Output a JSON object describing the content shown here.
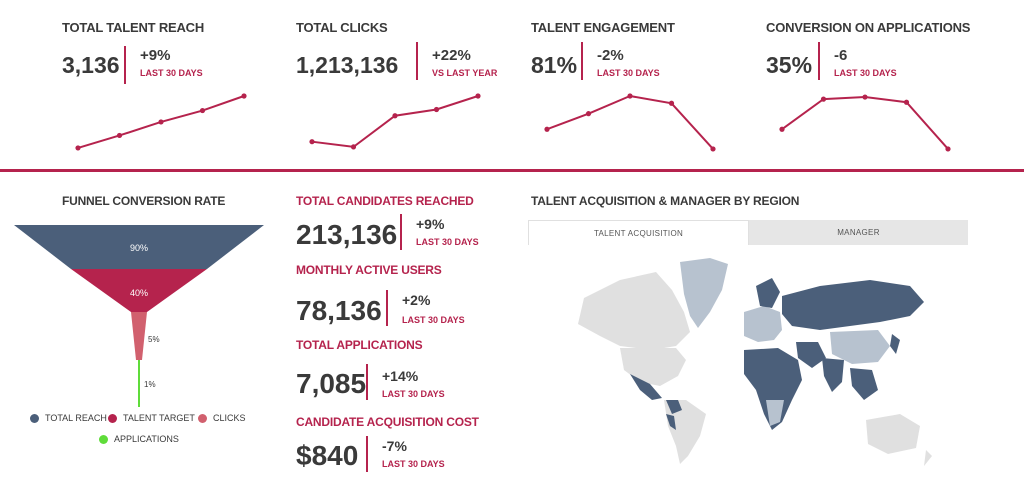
{
  "colors": {
    "accent": "#b5234d",
    "navy": "#4b5f7a",
    "pink": "#d1606e",
    "green": "#5fdc3a",
    "land": "#e0e0e0",
    "mid": "#b7c2cf"
  },
  "kpis": [
    {
      "title": "TOTAL TALENT REACH",
      "value": "3,136",
      "change": "+9%",
      "period": "LAST 30 DAYS",
      "trend": [
        2,
        14,
        27,
        38,
        52
      ]
    },
    {
      "title": "TOTAL CLICKS",
      "value": "1,213,136",
      "change": "+22%",
      "period": "VS LAST YEAR",
      "trend": [
        8,
        3,
        33,
        39,
        52
      ]
    },
    {
      "title": "TALENT ENGAGEMENT",
      "value": "81%",
      "change": "-2%",
      "period": "LAST 30 DAYS",
      "trend": [
        20,
        35,
        52,
        45,
        1
      ]
    },
    {
      "title": "CONVERSION ON APPLICATIONS",
      "value": "35%",
      "change": "-6",
      "period": "LAST 30 DAYS",
      "trend": [
        20,
        49,
        51,
        46,
        1
      ]
    }
  ],
  "funnel": {
    "title": "FUNNEL CONVERSION RATE",
    "stages": [
      {
        "name": "TOTAL REACH",
        "percent": "90%",
        "color": "#4b5f7a"
      },
      {
        "name": "TALENT TARGET",
        "percent": "40%",
        "color": "#b5234d"
      },
      {
        "name": "CLICKS",
        "percent": "5%",
        "color": "#d1606e"
      },
      {
        "name": "APPLICATIONS",
        "percent": "1%",
        "color": "#5fdc3a"
      }
    ]
  },
  "stats": [
    {
      "title": "TOTAL CANDIDATES REACHED",
      "value": "213,136",
      "change": "+9%",
      "period": "LAST 30 DAYS"
    },
    {
      "title": "MONTHLY ACTIVE USERS",
      "value": "78,136",
      "change": "+2%",
      "period": "LAST 30 DAYS"
    },
    {
      "title": "TOTAL APPLICATIONS",
      "value": "7,085",
      "change": "+14%",
      "period": "LAST 30 DAYS"
    },
    {
      "title": "CANDIDATE ACQUISITION COST",
      "value": "$840",
      "change": "-7%",
      "period": "LAST 30 DAYS"
    }
  ],
  "region": {
    "title": "TALENT ACQUISITION & MANAGER BY REGION",
    "tabs": [
      {
        "label": "TALENT ACQUISITION",
        "active": true
      },
      {
        "label": "MANAGER",
        "active": false
      }
    ]
  }
}
